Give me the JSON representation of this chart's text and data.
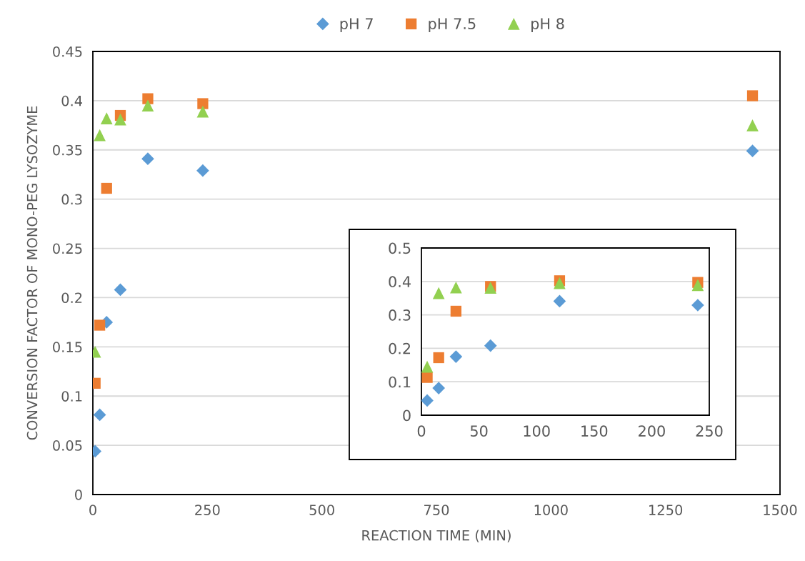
{
  "chart_data": [
    {
      "type": "scatter",
      "xlabel": "REACTION TIME (MIN)",
      "ylabel": "CONVERSION FACTOR OF MONO-PEG LYSOZYME",
      "xlim": [
        0,
        1500
      ],
      "xticks": [
        0,
        250,
        500,
        750,
        1000,
        1250,
        1500
      ],
      "ylim": [
        0,
        0.45
      ],
      "yticks": [
        0,
        0.05,
        0.1,
        0.15,
        0.2,
        0.25,
        0.3,
        0.35,
        0.4,
        0.45
      ],
      "grid": "y",
      "legend": "top",
      "series": [
        {
          "name": "pH 7",
          "color": "#5b9bd5",
          "marker": "diamond",
          "x": [
            5,
            15,
            30,
            60,
            120,
            240,
            1440
          ],
          "values": [
            0.044,
            0.081,
            0.175,
            0.208,
            0.341,
            0.329,
            0.349
          ]
        },
        {
          "name": "pH 7.5",
          "color": "#ed7d31",
          "marker": "square",
          "x": [
            5,
            15,
            30,
            60,
            120,
            240,
            1440
          ],
          "values": [
            0.113,
            0.172,
            0.311,
            0.385,
            0.402,
            0.397,
            0.405
          ]
        },
        {
          "name": "pH 8",
          "color": "#92d050",
          "marker": "triangle",
          "x": [
            5,
            15,
            30,
            60,
            120,
            240,
            1440
          ],
          "values": [
            0.145,
            0.365,
            0.382,
            0.381,
            0.395,
            0.389,
            0.375
          ]
        }
      ]
    },
    {
      "type": "scatter",
      "xlim": [
        0,
        250
      ],
      "xticks": [
        0,
        50,
        100,
        150,
        200,
        250
      ],
      "ylim": [
        0,
        0.5
      ],
      "yticks": [
        0,
        0.1,
        0.2,
        0.3,
        0.4,
        0.5
      ],
      "grid": "y",
      "series": [
        {
          "color": "#5b9bd5",
          "marker": "diamond",
          "x": [
            5,
            15,
            30,
            60,
            120,
            240
          ],
          "values": [
            0.044,
            0.081,
            0.175,
            0.208,
            0.341,
            0.329
          ]
        },
        {
          "color": "#ed7d31",
          "marker": "square",
          "x": [
            5,
            15,
            30,
            60,
            120,
            240
          ],
          "values": [
            0.113,
            0.172,
            0.311,
            0.385,
            0.402,
            0.397
          ]
        },
        {
          "color": "#92d050",
          "marker": "triangle",
          "x": [
            5,
            15,
            30,
            60,
            120,
            240
          ],
          "values": [
            0.145,
            0.365,
            0.382,
            0.381,
            0.395,
            0.389
          ]
        }
      ]
    }
  ]
}
